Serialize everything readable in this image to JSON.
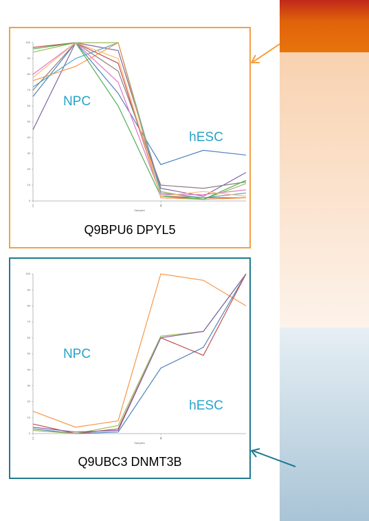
{
  "chart_data": [
    {
      "type": "line",
      "title": "Q9BPU6 DPYL5",
      "annotations": [
        "NPC",
        "hESC"
      ],
      "x_label": "Samples",
      "x": [
        1,
        2,
        3,
        4,
        5,
        6
      ],
      "xlim": [
        1,
        6
      ],
      "xticks": [
        1,
        4
      ],
      "ylim": [
        0,
        100
      ],
      "yticks": [
        0,
        10,
        20,
        30,
        40,
        50,
        60,
        70,
        80,
        90,
        100
      ],
      "series": [
        {
          "color": "#4f81bd",
          "values": [
            66,
            100,
            68,
            23,
            32,
            29
          ]
        },
        {
          "color": "#c0504d",
          "values": [
            97,
            100,
            87,
            3,
            2,
            2
          ]
        },
        {
          "color": "#9bbb59",
          "values": [
            94,
            100,
            100,
            6,
            1,
            11
          ]
        },
        {
          "color": "#8064a2",
          "values": [
            45,
            100,
            95,
            8,
            3,
            18
          ]
        },
        {
          "color": "#4bacc6",
          "values": [
            72,
            90,
            100,
            5,
            2,
            5
          ]
        },
        {
          "color": "#f79646",
          "values": [
            76,
            85,
            100,
            2,
            1,
            2
          ]
        },
        {
          "color": "#e377c2",
          "values": [
            80,
            100,
            75,
            4,
            4,
            7
          ]
        },
        {
          "color": "#8c7f7f",
          "values": [
            70,
            100,
            82,
            10,
            8,
            12
          ]
        },
        {
          "color": "#4caf50",
          "values": [
            96,
            100,
            60,
            3,
            1,
            13
          ]
        },
        {
          "color": "#ffbb78",
          "values": [
            78,
            100,
            90,
            3,
            6,
            3
          ]
        }
      ]
    },
    {
      "type": "line",
      "title": "Q9UBC3 DNMT3B",
      "annotations": [
        "NPC",
        "hESC"
      ],
      "x_label": "Samples",
      "x": [
        1,
        2,
        3,
        4,
        5,
        6
      ],
      "xlim": [
        1,
        6
      ],
      "xticks": [
        1,
        4
      ],
      "ylim": [
        0,
        100
      ],
      "yticks": [
        0,
        10,
        20,
        30,
        40,
        50,
        60,
        70,
        80,
        90,
        100
      ],
      "series": [
        {
          "color": "#f79646",
          "values": [
            14,
            4,
            8,
            100,
            96,
            80
          ]
        },
        {
          "color": "#4f81bd",
          "values": [
            3,
            0,
            1,
            41,
            54,
            100
          ]
        },
        {
          "color": "#c0504d",
          "values": [
            6,
            0,
            3,
            60,
            49,
            100
          ]
        },
        {
          "color": "#9bbb59",
          "values": [
            2,
            0,
            5,
            61,
            64,
            100
          ]
        },
        {
          "color": "#8064a2",
          "values": [
            4,
            1,
            2,
            60,
            64,
            100
          ]
        }
      ]
    }
  ]
}
